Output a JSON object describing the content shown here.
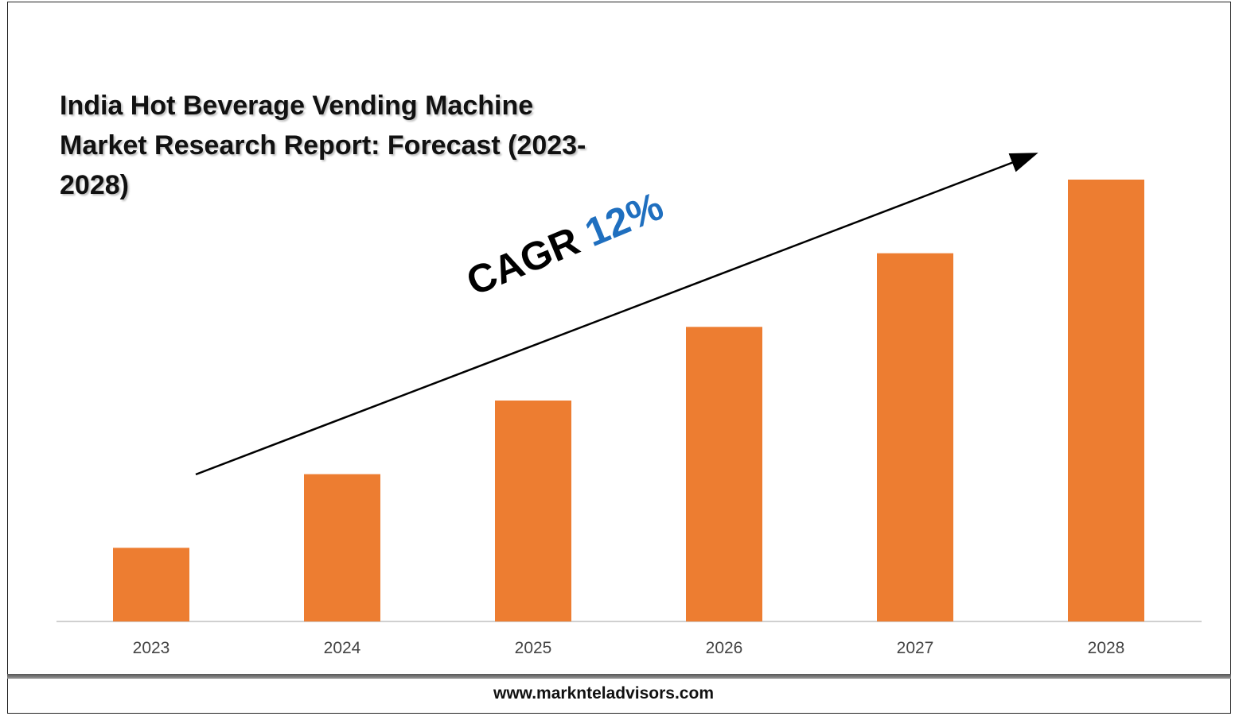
{
  "title": "India Hot Beverage Vending Machine Market Research Report: Forecast (2023-2028)",
  "cagr": {
    "label": "CAGR",
    "value": "12%"
  },
  "footer": "www.marknteladvisors.com",
  "colors": {
    "bar": "#ed7d31",
    "cagr_value": "#1f6fbf",
    "axis": "#d0d0d0"
  },
  "chart_data": {
    "type": "bar",
    "title": "India Hot Beverage Vending Machine Market Research Report: Forecast (2023-2028)",
    "categories": [
      "2023",
      "2024",
      "2025",
      "2026",
      "2027",
      "2028"
    ],
    "values": [
      1.0,
      2.0,
      3.0,
      4.0,
      5.0,
      6.0
    ],
    "xlabel": "",
    "ylabel": "",
    "ylim": [
      0,
      6.0
    ],
    "grid": false,
    "legend": "none",
    "annotations": [
      "CAGR 12%"
    ]
  }
}
